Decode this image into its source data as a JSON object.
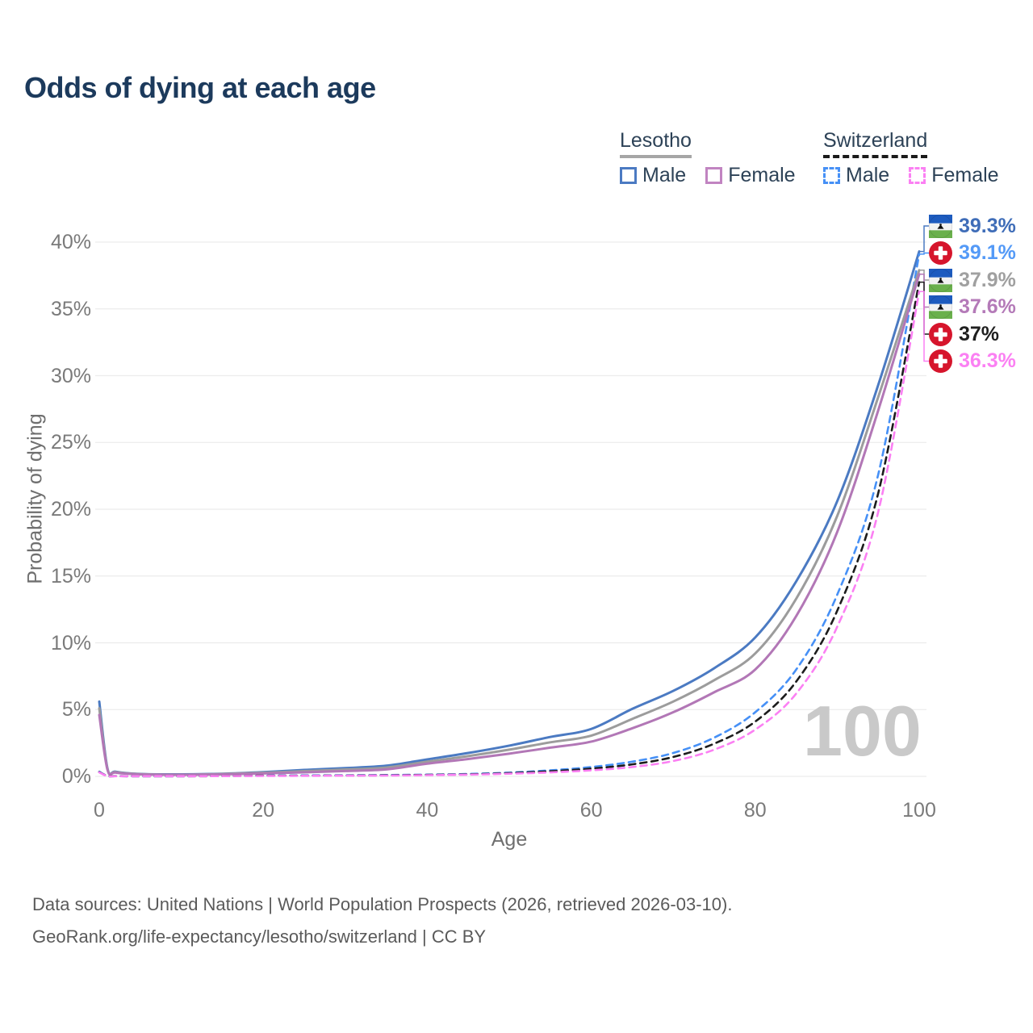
{
  "title": "Odds of dying at each age",
  "legend": {
    "groups": [
      {
        "name": "Lesotho",
        "line_style": "solid",
        "underline_color": "#a6a6a6",
        "items": [
          {
            "label": "Male",
            "color": "#4b7ac2"
          },
          {
            "label": "Female",
            "color": "#c184c1"
          }
        ]
      },
      {
        "name": "Switzerland",
        "line_style": "dashed",
        "underline_color": "#1a1a1a",
        "items": [
          {
            "label": "Male",
            "color": "#4690f6"
          },
          {
            "label": "Female",
            "color": "#fb80f3"
          }
        ]
      }
    ]
  },
  "chart_data": {
    "type": "line",
    "title": "Odds of dying at each age",
    "xlabel": "Age",
    "ylabel": "Probability of dying",
    "xlim": [
      0,
      100
    ],
    "ylim": [
      0,
      40
    ],
    "x_ticks": [
      0,
      20,
      40,
      60,
      80,
      100
    ],
    "y_ticks": [
      0,
      5,
      10,
      15,
      20,
      25,
      30,
      35,
      40
    ],
    "y_tick_suffix": "%",
    "grid": "horizontal",
    "legend_position": "top-right",
    "watermark": "100",
    "x": [
      0,
      1,
      2,
      5,
      10,
      15,
      20,
      25,
      30,
      35,
      40,
      45,
      50,
      55,
      60,
      65,
      70,
      75,
      80,
      85,
      90,
      95,
      100
    ],
    "series": [
      {
        "name": "Lesotho Male",
        "country": "lesotho",
        "sex": "male",
        "color": "#4b7ac2",
        "dash": "solid",
        "width": 3,
        "values": [
          5.6,
          0.6,
          0.35,
          0.18,
          0.15,
          0.2,
          0.32,
          0.48,
          0.62,
          0.8,
          1.27,
          1.75,
          2.3,
          2.95,
          3.55,
          5.05,
          6.4,
          8.1,
          10.4,
          14.6,
          20.6,
          29.3,
          39.3
        ],
        "end_label": {
          "text": "39.3%",
          "color": "#3f6db8",
          "flag": "lesotho"
        }
      },
      {
        "name": "Switzerland Male",
        "country": "switzerland",
        "sex": "male",
        "color": "#4690f6",
        "dash": "dashed",
        "width": 2.6,
        "values": [
          0.35,
          0.03,
          0.02,
          0.01,
          0.01,
          0.03,
          0.06,
          0.07,
          0.08,
          0.1,
          0.13,
          0.18,
          0.28,
          0.45,
          0.7,
          1.1,
          1.75,
          2.9,
          4.8,
          8.0,
          13.6,
          22.6,
          39.1
        ],
        "end_label": {
          "text": "39.1%",
          "color": "#549af7",
          "flag": "switzerland"
        }
      },
      {
        "name": "Lesotho Both sexes",
        "country": "lesotho",
        "sex": "total",
        "color": "#9c9c9c",
        "dash": "solid",
        "width": 3,
        "values": [
          5.1,
          0.55,
          0.32,
          0.17,
          0.13,
          0.18,
          0.27,
          0.39,
          0.51,
          0.66,
          1.1,
          1.52,
          2.0,
          2.55,
          3.05,
          4.3,
          5.6,
          7.2,
          9.2,
          13.3,
          19.5,
          28.4,
          37.9
        ],
        "end_label": {
          "text": "37.9%",
          "color": "#a0a0a0",
          "flag": "lesotho"
        }
      },
      {
        "name": "Lesotho Female",
        "country": "lesotho",
        "sex": "female",
        "color": "#b277b6",
        "dash": "solid",
        "width": 3,
        "values": [
          4.6,
          0.5,
          0.28,
          0.15,
          0.12,
          0.15,
          0.22,
          0.3,
          0.4,
          0.52,
          0.95,
          1.3,
          1.7,
          2.15,
          2.6,
          3.6,
          4.8,
          6.3,
          8.0,
          12.0,
          18.3,
          27.4,
          37.6
        ],
        "end_label": {
          "text": "37.6%",
          "color": "#b47ab8",
          "flag": "lesotho"
        }
      },
      {
        "name": "Switzerland Both sexes",
        "country": "switzerland",
        "sex": "total",
        "color": "#1c1c1c",
        "dash": "dashed",
        "width": 2.6,
        "values": [
          0.32,
          0.03,
          0.02,
          0.01,
          0.01,
          0.02,
          0.05,
          0.05,
          0.06,
          0.08,
          0.11,
          0.15,
          0.24,
          0.38,
          0.58,
          0.9,
          1.45,
          2.45,
          4.1,
          7.1,
          12.4,
          21.2,
          37.0
        ],
        "end_label": {
          "text": "37%",
          "color": "#1f1f1f",
          "flag": "switzerland"
        }
      },
      {
        "name": "Switzerland Female",
        "country": "switzerland",
        "sex": "female",
        "color": "#fb80f3",
        "dash": "dashed",
        "width": 2.6,
        "values": [
          0.3,
          0.02,
          0.01,
          0.01,
          0.01,
          0.02,
          0.03,
          0.04,
          0.05,
          0.06,
          0.09,
          0.13,
          0.2,
          0.3,
          0.45,
          0.7,
          1.15,
          2.0,
          3.5,
          6.2,
          11.2,
          19.8,
          36.3
        ],
        "end_label": {
          "text": "36.3%",
          "color": "#fb80f3",
          "flag": "switzerland"
        }
      }
    ]
  },
  "flags": {
    "lesotho": {
      "blue": "#1d5bbf",
      "white": "#f2f2f2",
      "green": "#6ab04c",
      "hat": "#111111"
    },
    "switzerland": {
      "red": "#d6152c",
      "cross": "#ffffff"
    }
  },
  "footer": {
    "line1": "Data sources: United Nations | World Population Prospects (2026, retrieved 2026-03-10).",
    "line2": "GeoRank.org/life-expectancy/lesotho/switzerland | CC BY"
  }
}
